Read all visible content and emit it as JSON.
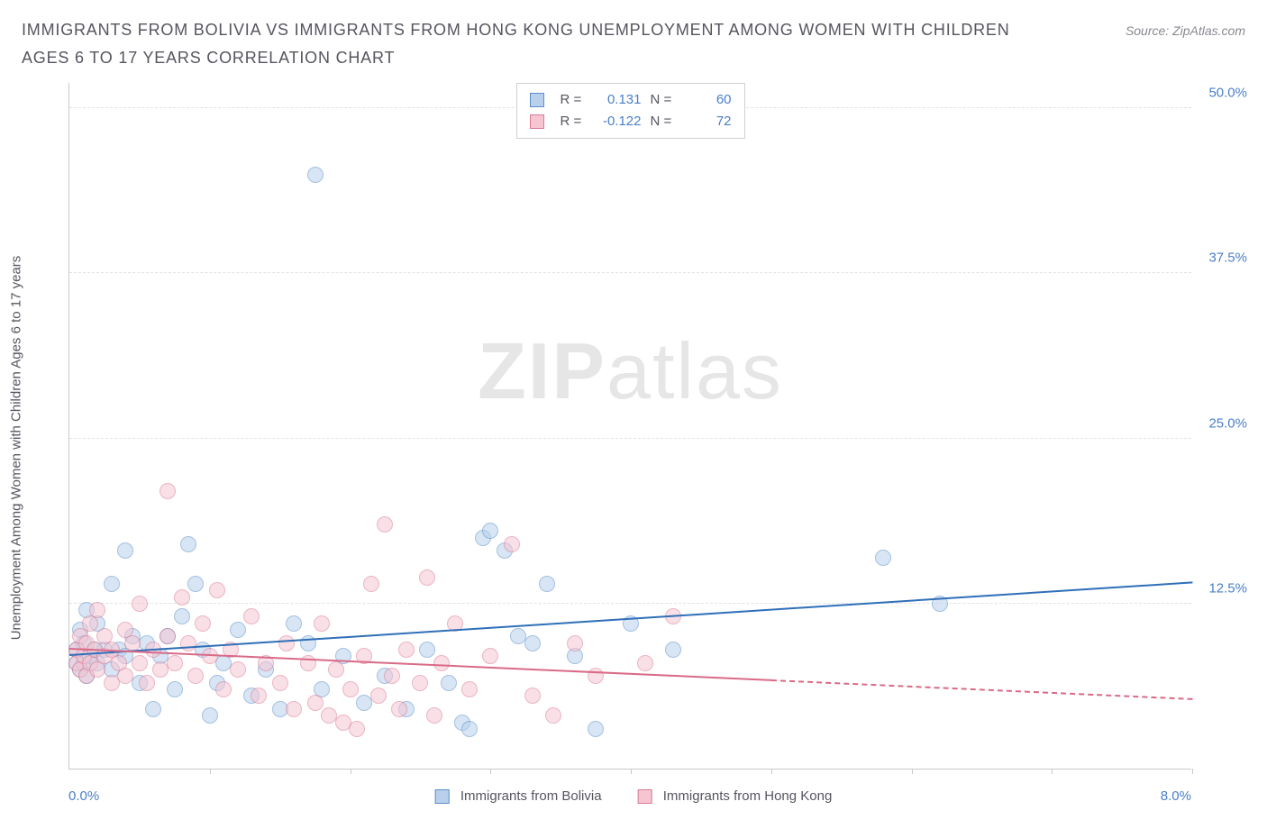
{
  "header": {
    "title": "IMMIGRANTS FROM BOLIVIA VS IMMIGRANTS FROM HONG KONG UNEMPLOYMENT AMONG WOMEN WITH CHILDREN AGES 6 TO 17 YEARS CORRELATION CHART",
    "source": "Source: ZipAtlas.com"
  },
  "chart": {
    "type": "scatter",
    "ylabel": "Unemployment Among Women with Children Ages 6 to 17 years",
    "xlim": [
      0,
      8
    ],
    "ylim": [
      0,
      52
    ],
    "x_min_label": "0.0%",
    "x_max_label": "8.0%",
    "y_grid": [
      12.5,
      25.0,
      37.5,
      50.0
    ],
    "y_grid_labels": [
      "12.5%",
      "25.0%",
      "37.5%",
      "50.0%"
    ],
    "x_ticks": [
      1,
      2,
      3,
      4,
      5,
      6,
      7,
      8
    ],
    "background_color": "#ffffff",
    "grid_color": "#e2e2e2",
    "axis_color": "#c9c9c9",
    "marker_radius": 9,
    "watermark": {
      "part1": "ZIP",
      "part2": "atlas"
    },
    "legend_bottom": [
      {
        "label": "Immigrants from Bolivia",
        "fill": "#b8d0ec",
        "stroke": "#5a8fc9"
      },
      {
        "label": "Immigrants from Hong Kong",
        "fill": "#f5c6d2",
        "stroke": "#d97a95"
      }
    ],
    "legend_box": [
      {
        "fill": "#b8d0ec",
        "stroke": "#5a8fc9",
        "r_label": "R =",
        "r": "0.131",
        "n_label": "N =",
        "n": "60"
      },
      {
        "fill": "#f5c6d2",
        "stroke": "#d97a95",
        "r_label": "R =",
        "r": "-0.122",
        "n_label": "N =",
        "n": "72"
      }
    ],
    "series": [
      {
        "name": "Immigrants from Bolivia",
        "fill": "#b8d0ec",
        "stroke": "#5a8fc9",
        "trend": {
          "color": "#2f6fb8",
          "y_at_xmin": 8.5,
          "y_at_xmax": 14.0,
          "solid_until_x": 8.0
        },
        "points": [
          [
            0.05,
            8.0
          ],
          [
            0.05,
            9.0
          ],
          [
            0.08,
            7.5
          ],
          [
            0.08,
            10.5
          ],
          [
            0.1,
            9.5
          ],
          [
            0.1,
            8.0
          ],
          [
            0.12,
            7.0
          ],
          [
            0.12,
            12.0
          ],
          [
            0.15,
            8.5
          ],
          [
            0.18,
            9.0
          ],
          [
            0.2,
            8.0
          ],
          [
            0.2,
            11.0
          ],
          [
            0.25,
            9.0
          ],
          [
            0.3,
            7.5
          ],
          [
            0.3,
            14.0
          ],
          [
            0.35,
            9.0
          ],
          [
            0.4,
            8.5
          ],
          [
            0.4,
            16.5
          ],
          [
            0.45,
            10.0
          ],
          [
            0.5,
            6.5
          ],
          [
            0.55,
            9.5
          ],
          [
            0.6,
            4.5
          ],
          [
            0.65,
            8.5
          ],
          [
            0.7,
            10.0
          ],
          [
            0.75,
            6.0
          ],
          [
            0.8,
            11.5
          ],
          [
            0.85,
            17.0
          ],
          [
            0.9,
            14.0
          ],
          [
            0.95,
            9.0
          ],
          [
            1.0,
            4.0
          ],
          [
            1.05,
            6.5
          ],
          [
            1.1,
            8.0
          ],
          [
            1.2,
            10.5
          ],
          [
            1.3,
            5.5
          ],
          [
            1.4,
            7.5
          ],
          [
            1.5,
            4.5
          ],
          [
            1.6,
            11.0
          ],
          [
            1.7,
            9.5
          ],
          [
            1.75,
            45.0
          ],
          [
            1.8,
            6.0
          ],
          [
            1.95,
            8.5
          ],
          [
            2.1,
            5.0
          ],
          [
            2.25,
            7.0
          ],
          [
            2.4,
            4.5
          ],
          [
            2.55,
            9.0
          ],
          [
            2.7,
            6.5
          ],
          [
            2.8,
            3.5
          ],
          [
            2.85,
            3.0
          ],
          [
            2.95,
            17.5
          ],
          [
            3.0,
            18.0
          ],
          [
            3.1,
            16.5
          ],
          [
            3.2,
            10.0
          ],
          [
            3.3,
            9.5
          ],
          [
            3.4,
            14.0
          ],
          [
            3.6,
            8.5
          ],
          [
            3.75,
            3.0
          ],
          [
            5.8,
            16.0
          ],
          [
            6.2,
            12.5
          ],
          [
            4.0,
            11.0
          ],
          [
            4.3,
            9.0
          ]
        ]
      },
      {
        "name": "Immigrants from Hong Kong",
        "fill": "#f5c6d2",
        "stroke": "#d97a95",
        "trend": {
          "color": "#d96a88",
          "y_at_xmin": 9.0,
          "y_at_xmax": 5.2,
          "solid_until_x": 5.0
        },
        "points": [
          [
            0.05,
            9.0
          ],
          [
            0.05,
            8.0
          ],
          [
            0.08,
            10.0
          ],
          [
            0.08,
            7.5
          ],
          [
            0.1,
            8.5
          ],
          [
            0.12,
            9.5
          ],
          [
            0.12,
            7.0
          ],
          [
            0.15,
            11.0
          ],
          [
            0.15,
            8.0
          ],
          [
            0.18,
            9.0
          ],
          [
            0.2,
            12.0
          ],
          [
            0.2,
            7.5
          ],
          [
            0.25,
            8.5
          ],
          [
            0.25,
            10.0
          ],
          [
            0.3,
            9.0
          ],
          [
            0.3,
            6.5
          ],
          [
            0.35,
            8.0
          ],
          [
            0.4,
            10.5
          ],
          [
            0.4,
            7.0
          ],
          [
            0.45,
            9.5
          ],
          [
            0.5,
            8.0
          ],
          [
            0.5,
            12.5
          ],
          [
            0.55,
            6.5
          ],
          [
            0.6,
            9.0
          ],
          [
            0.65,
            7.5
          ],
          [
            0.7,
            10.0
          ],
          [
            0.7,
            21.0
          ],
          [
            0.75,
            8.0
          ],
          [
            0.8,
            13.0
          ],
          [
            0.85,
            9.5
          ],
          [
            0.9,
            7.0
          ],
          [
            0.95,
            11.0
          ],
          [
            1.0,
            8.5
          ],
          [
            1.05,
            13.5
          ],
          [
            1.1,
            6.0
          ],
          [
            1.15,
            9.0
          ],
          [
            1.2,
            7.5
          ],
          [
            1.3,
            11.5
          ],
          [
            1.35,
            5.5
          ],
          [
            1.4,
            8.0
          ],
          [
            1.5,
            6.5
          ],
          [
            1.55,
            9.5
          ],
          [
            1.6,
            4.5
          ],
          [
            1.7,
            8.0
          ],
          [
            1.75,
            5.0
          ],
          [
            1.8,
            11.0
          ],
          [
            1.85,
            4.0
          ],
          [
            1.9,
            7.5
          ],
          [
            1.95,
            3.5
          ],
          [
            2.0,
            6.0
          ],
          [
            2.05,
            3.0
          ],
          [
            2.1,
            8.5
          ],
          [
            2.15,
            14.0
          ],
          [
            2.2,
            5.5
          ],
          [
            2.25,
            18.5
          ],
          [
            2.3,
            7.0
          ],
          [
            2.35,
            4.5
          ],
          [
            2.4,
            9.0
          ],
          [
            2.5,
            6.5
          ],
          [
            2.55,
            14.5
          ],
          [
            2.6,
            4.0
          ],
          [
            2.65,
            8.0
          ],
          [
            2.75,
            11.0
          ],
          [
            2.85,
            6.0
          ],
          [
            3.0,
            8.5
          ],
          [
            3.15,
            17.0
          ],
          [
            3.3,
            5.5
          ],
          [
            3.45,
            4.0
          ],
          [
            3.6,
            9.5
          ],
          [
            3.75,
            7.0
          ],
          [
            4.1,
            8.0
          ],
          [
            4.3,
            11.5
          ]
        ]
      }
    ]
  }
}
